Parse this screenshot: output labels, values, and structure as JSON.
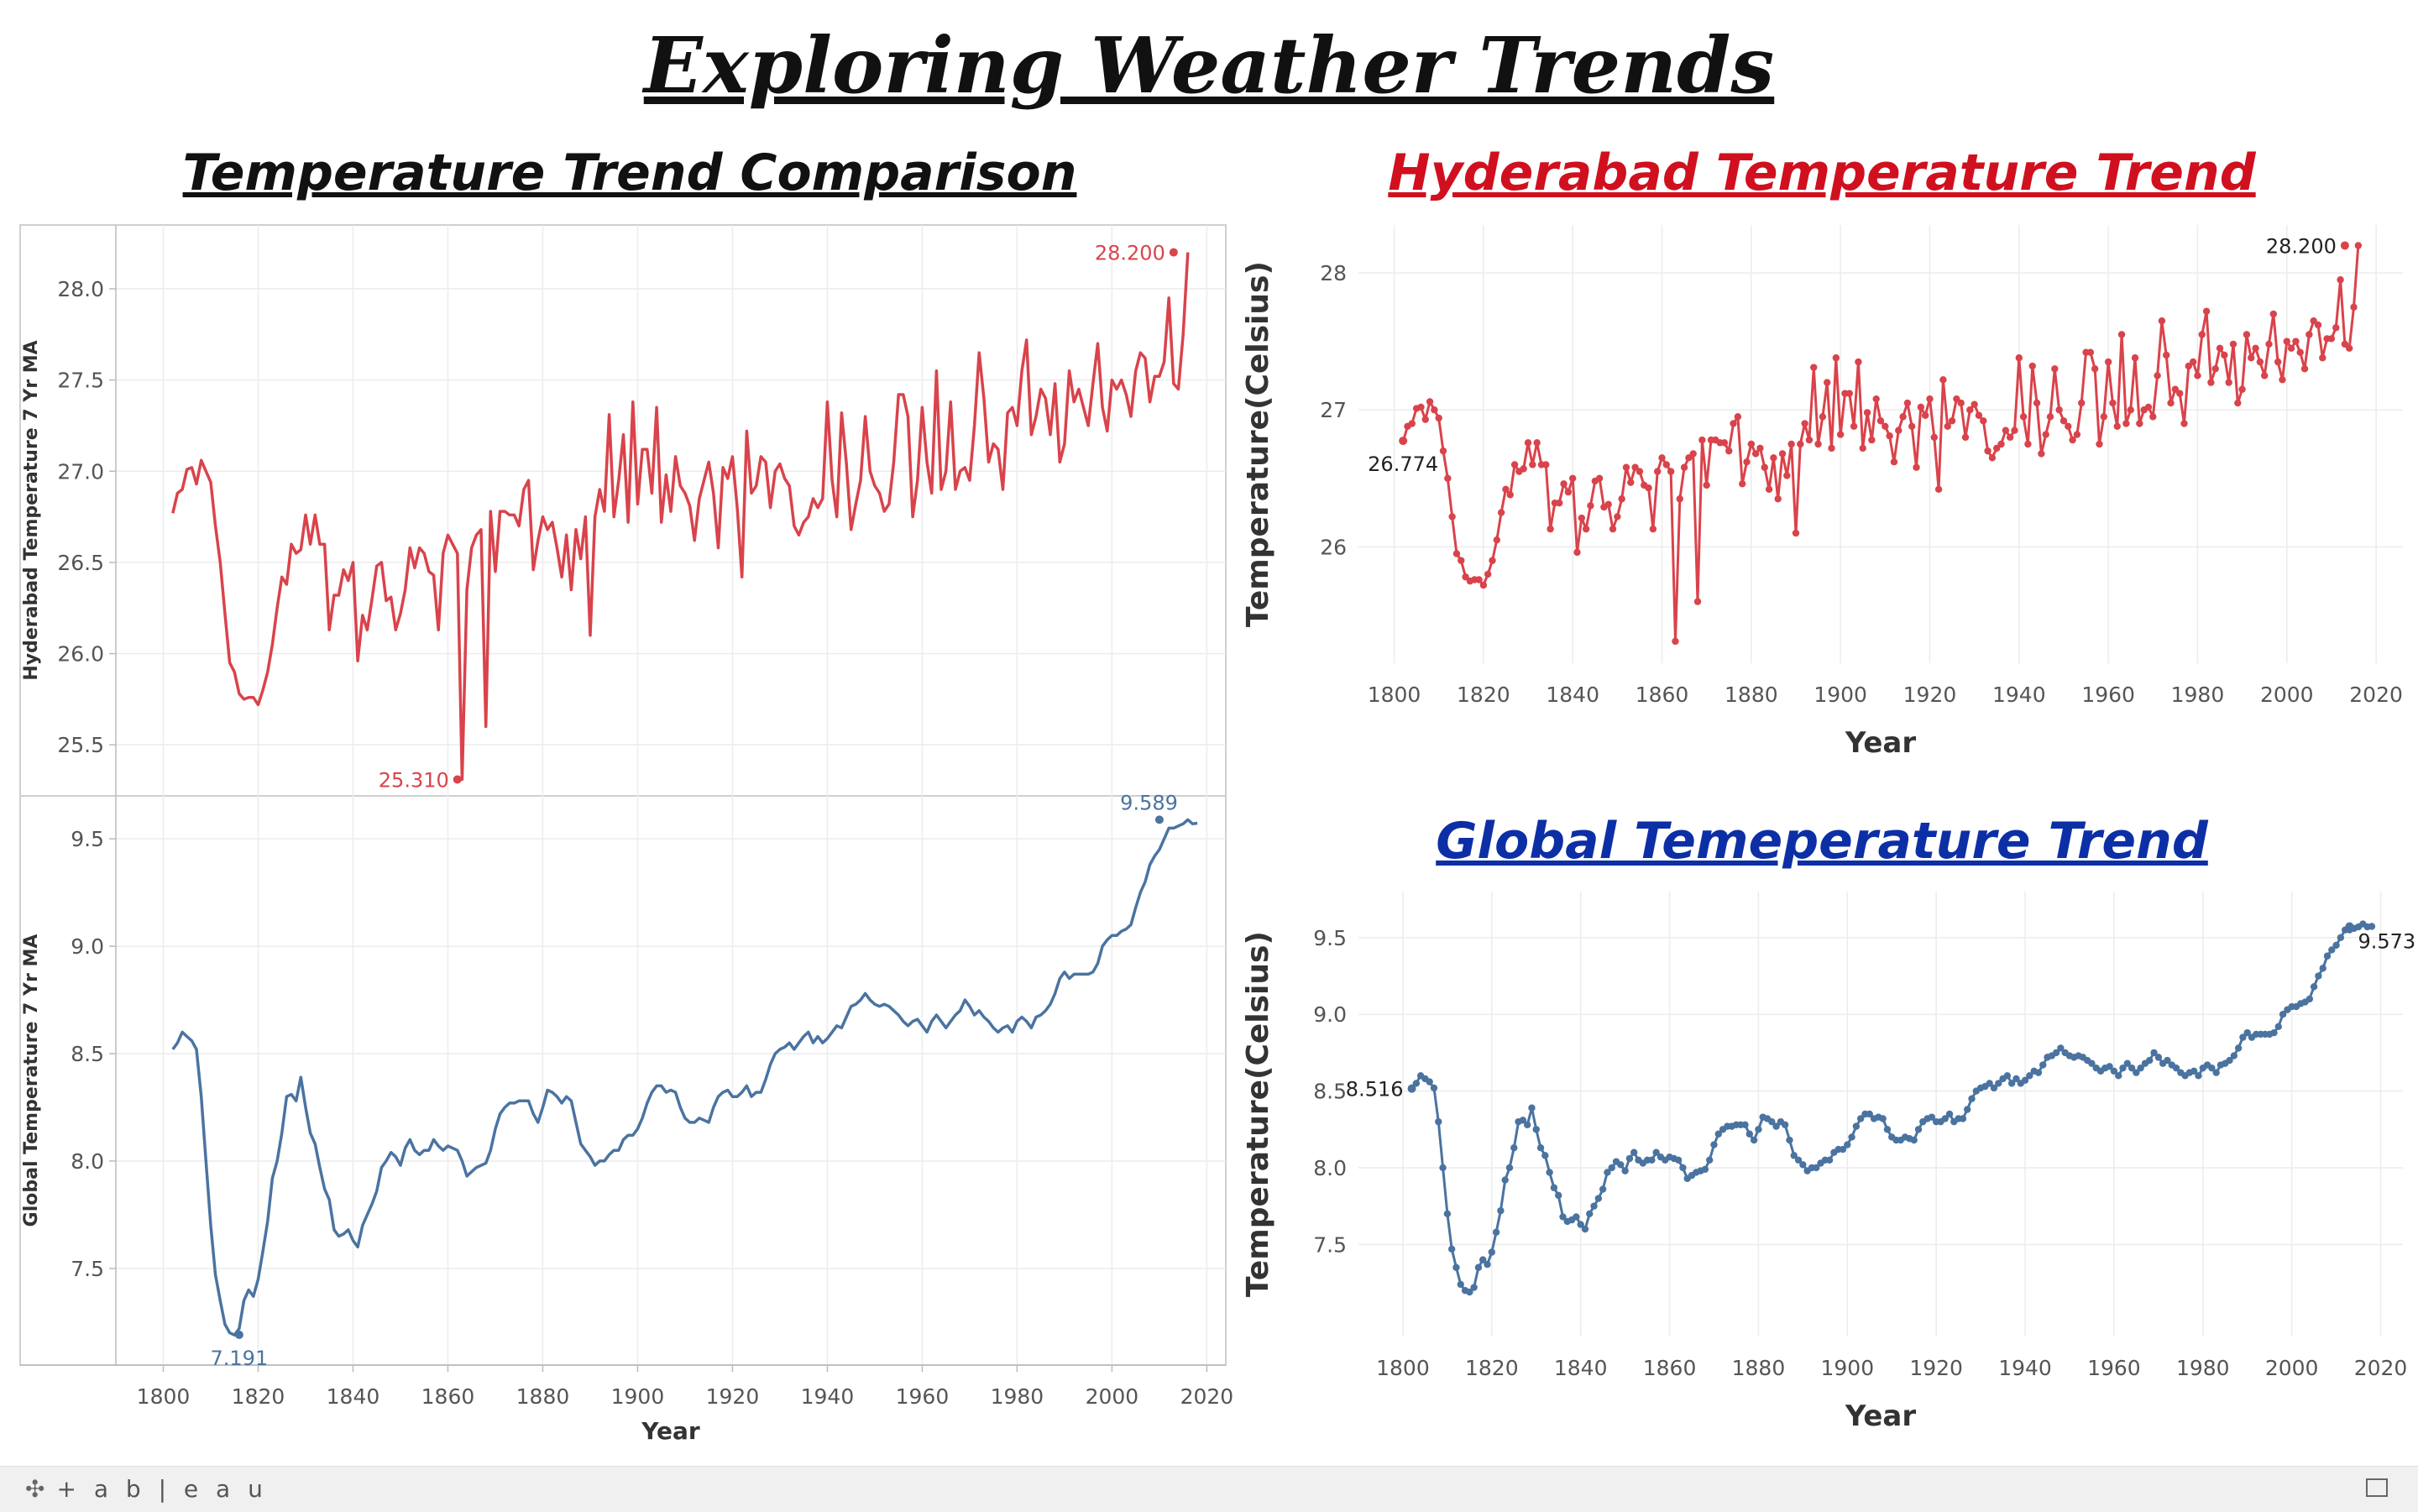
{
  "title": "Exploring Weather Trends",
  "panels": {
    "comparison": "Temperature Trend Comparison",
    "hyderabad": "Hyderabad Temperature Trend",
    "global": "Global Temeperature Trend"
  },
  "colors": {
    "red": "#d9434b",
    "blue": "#4a73a0",
    "hyd_title": "#d0101e",
    "glob_title": "#0d2fa6"
  },
  "footer": {
    "brand": "+ a b | e a u",
    "brand_icon": "tableau-logo-icon",
    "fullscreen_icon": "fullscreen-icon"
  },
  "chart_data": [
    {
      "type": "line",
      "name": "comparison-hyderabad",
      "title": "Temperature Trend Comparison",
      "xlabel": "",
      "ylabel": "Hyderabad Temperature 7 Yr MA",
      "xlim": [
        1790,
        2024
      ],
      "ylim": [
        25.22,
        28.35
      ],
      "yticks": [
        25.5,
        26.0,
        26.5,
        27.0,
        27.5,
        28.0
      ],
      "yticklabels": [
        "25.5",
        "26.0",
        "26.5",
        "27.0",
        "27.5",
        "28.0"
      ],
      "annotations": [
        {
          "x": 1862,
          "y": 25.31,
          "text": "25.310",
          "pos": "left"
        },
        {
          "x": 2013,
          "y": 28.2,
          "text": "28.200",
          "pos": "left"
        }
      ]
    },
    {
      "type": "line",
      "name": "comparison-global",
      "xlabel": "Year",
      "ylabel": "Global Temperature 7 Yr MA",
      "xlim": [
        1790,
        2024
      ],
      "ylim": [
        7.05,
        9.7
      ],
      "xticks": [
        1800,
        1820,
        1840,
        1860,
        1880,
        1900,
        1920,
        1940,
        1960,
        1980,
        2000,
        2020
      ],
      "yticks": [
        7.5,
        8.0,
        8.5,
        9.0,
        9.5
      ],
      "yticklabels": [
        "7.5",
        "8.0",
        "8.5",
        "9.0",
        "9.5"
      ],
      "annotations": [
        {
          "x": 1816,
          "y": 7.191,
          "text": "7.191",
          "pos": "below"
        },
        {
          "x": 2010,
          "y": 9.589,
          "text": "9.589",
          "pos": "above"
        }
      ]
    },
    {
      "type": "line",
      "name": "hyderabad",
      "title": "Hyderabad Temperature Trend",
      "xlabel": "Year",
      "ylabel": "Temperature(Celsius)",
      "markers": true,
      "xlim": [
        1792,
        2026
      ],
      "ylim": [
        25.15,
        28.35
      ],
      "xticks": [
        1800,
        1820,
        1840,
        1860,
        1880,
        1900,
        1920,
        1940,
        1960,
        1980,
        2000,
        2020
      ],
      "yticks": [
        26,
        27,
        28
      ],
      "yticklabels": [
        "26",
        "27",
        "28"
      ],
      "annotations": [
        {
          "x": 1802,
          "y": 26.774,
          "text": "26.774",
          "pos": "below"
        },
        {
          "x": 2013,
          "y": 28.2,
          "text": "28.200",
          "pos": "left"
        }
      ]
    },
    {
      "type": "line",
      "name": "global",
      "title": "Global Temeperature Trend",
      "xlabel": "Year",
      "ylabel": "Temperature(Celsius)",
      "markers": true,
      "xlim": [
        1790,
        2025
      ],
      "ylim": [
        6.9,
        9.8
      ],
      "xticks": [
        1800,
        1820,
        1840,
        1860,
        1880,
        1900,
        1920,
        1940,
        1960,
        1980,
        2000,
        2020
      ],
      "yticks": [
        7.5,
        8.0,
        8.5,
        9.0,
        9.5
      ],
      "yticklabels": [
        "7.5",
        "8.0",
        "8.5",
        "9.0",
        "9.5"
      ],
      "annotations": [
        {
          "x": 1802,
          "y": 8.516,
          "text": "8.516",
          "pos": "left"
        },
        {
          "x": 2013,
          "y": 9.573,
          "text": "9.573",
          "pos": "right"
        }
      ]
    }
  ],
  "series": {
    "hyderabad_7yr_ma": {
      "start_year": 1802,
      "values": [
        26.77,
        26.88,
        26.9,
        27.01,
        27.02,
        26.93,
        27.06,
        27.0,
        26.94,
        26.7,
        26.5,
        26.22,
        25.95,
        25.9,
        25.78,
        25.75,
        25.76,
        25.76,
        25.72,
        25.8,
        25.9,
        26.05,
        26.25,
        26.42,
        26.38,
        26.6,
        26.55,
        26.57,
        26.76,
        26.6,
        26.76,
        26.6,
        26.6,
        26.13,
        26.32,
        26.32,
        26.46,
        26.4,
        26.5,
        25.96,
        26.21,
        26.13,
        26.3,
        26.48,
        26.5,
        26.29,
        26.31,
        26.13,
        26.22,
        26.35,
        26.58,
        26.47,
        26.58,
        26.55,
        26.45,
        26.43,
        26.13,
        26.55,
        26.65,
        26.6,
        26.55,
        25.31,
        26.35,
        26.58,
        26.65,
        26.68,
        25.6,
        26.78,
        26.45,
        26.78,
        26.78,
        26.76,
        26.76,
        26.7,
        26.9,
        26.95,
        26.46,
        26.62,
        26.75,
        26.68,
        26.72,
        26.58,
        26.42,
        26.65,
        26.35,
        26.68,
        26.52,
        26.75,
        26.1,
        26.75,
        26.9,
        26.78,
        27.31,
        26.75,
        26.95,
        27.2,
        26.72,
        27.38,
        26.82,
        27.12,
        27.12,
        26.88,
        27.35,
        26.72,
        26.98,
        26.78,
        27.08,
        26.92,
        26.88,
        26.81,
        26.62,
        26.85,
        26.95,
        27.05,
        26.88,
        26.58,
        27.02,
        26.96,
        27.08,
        26.8,
        26.42,
        27.22,
        26.88,
        26.92,
        27.08,
        27.05,
        26.8,
        27.0,
        27.04,
        26.96,
        26.92,
        26.7,
        26.65,
        26.72,
        26.75,
        26.85,
        26.8,
        26.85,
        27.38,
        26.95,
        26.75,
        27.32,
        27.05,
        26.68,
        26.82,
        26.95,
        27.3,
        27.0,
        26.92,
        26.88,
        26.78,
        26.82,
        27.05,
        27.42,
        27.42,
        27.3,
        26.75,
        26.95,
        27.35,
        27.05,
        26.88,
        27.55,
        26.9,
        27.0,
        27.38,
        26.9,
        27.0,
        27.02,
        26.95,
        27.25,
        27.65,
        27.4,
        27.05,
        27.15,
        27.12,
        26.9,
        27.32,
        27.35,
        27.25,
        27.55,
        27.72,
        27.2,
        27.3,
        27.45,
        27.4,
        27.2,
        27.48,
        27.05,
        27.15,
        27.55,
        27.38,
        27.45,
        27.35,
        27.25,
        27.48,
        27.7,
        27.35,
        27.22,
        27.5,
        27.45,
        27.5,
        27.42,
        27.3,
        27.55,
        27.65,
        27.62,
        27.38,
        27.52,
        27.52,
        27.6,
        27.95,
        27.48,
        27.45,
        27.75,
        28.2
      ]
    },
    "global_7yr_ma": {
      "start_year": 1802,
      "values": [
        8.52,
        8.55,
        8.6,
        8.58,
        8.56,
        8.52,
        8.3,
        8.0,
        7.7,
        7.47,
        7.35,
        7.24,
        7.2,
        7.19,
        7.22,
        7.35,
        7.4,
        7.37,
        7.45,
        7.58,
        7.72,
        7.92,
        8.0,
        8.13,
        8.3,
        8.31,
        8.28,
        8.39,
        8.25,
        8.13,
        8.08,
        7.97,
        7.87,
        7.82,
        7.68,
        7.65,
        7.66,
        7.68,
        7.63,
        7.6,
        7.7,
        7.75,
        7.8,
        7.86,
        7.97,
        8.0,
        8.04,
        8.02,
        7.98,
        8.06,
        8.1,
        8.05,
        8.03,
        8.05,
        8.05,
        8.1,
        8.07,
        8.05,
        8.07,
        8.06,
        8.05,
        8.0,
        7.93,
        7.95,
        7.97,
        7.98,
        7.99,
        8.05,
        8.15,
        8.22,
        8.25,
        8.27,
        8.27,
        8.28,
        8.28,
        8.28,
        8.22,
        8.18,
        8.25,
        8.33,
        8.32,
        8.3,
        8.27,
        8.3,
        8.28,
        8.18,
        8.08,
        8.05,
        8.02,
        7.98,
        8.0,
        8.0,
        8.03,
        8.05,
        8.05,
        8.1,
        8.12,
        8.12,
        8.15,
        8.2,
        8.27,
        8.32,
        8.35,
        8.35,
        8.32,
        8.33,
        8.32,
        8.25,
        8.2,
        8.18,
        8.18,
        8.2,
        8.19,
        8.18,
        8.25,
        8.3,
        8.32,
        8.33,
        8.3,
        8.3,
        8.32,
        8.35,
        8.3,
        8.32,
        8.32,
        8.38,
        8.45,
        8.5,
        8.52,
        8.53,
        8.55,
        8.52,
        8.55,
        8.58,
        8.6,
        8.55,
        8.58,
        8.55,
        8.57,
        8.6,
        8.63,
        8.62,
        8.67,
        8.72,
        8.73,
        8.75,
        8.78,
        8.75,
        8.73,
        8.72,
        8.73,
        8.72,
        8.7,
        8.68,
        8.65,
        8.63,
        8.65,
        8.66,
        8.63,
        8.6,
        8.65,
        8.68,
        8.65,
        8.62,
        8.65,
        8.68,
        8.7,
        8.75,
        8.72,
        8.68,
        8.7,
        8.67,
        8.65,
        8.62,
        8.6,
        8.62,
        8.63,
        8.6,
        8.65,
        8.67,
        8.65,
        8.62,
        8.67,
        8.68,
        8.7,
        8.73,
        8.78,
        8.85,
        8.88,
        8.85,
        8.87,
        8.87,
        8.87,
        8.87,
        8.88,
        8.92,
        9.0,
        9.03,
        9.05,
        9.05,
        9.07,
        9.08,
        9.1,
        9.18,
        9.25,
        9.3,
        9.38,
        9.42,
        9.45,
        9.5,
        9.55,
        9.55,
        9.56,
        9.57,
        9.589,
        9.57,
        9.573
      ]
    }
  }
}
